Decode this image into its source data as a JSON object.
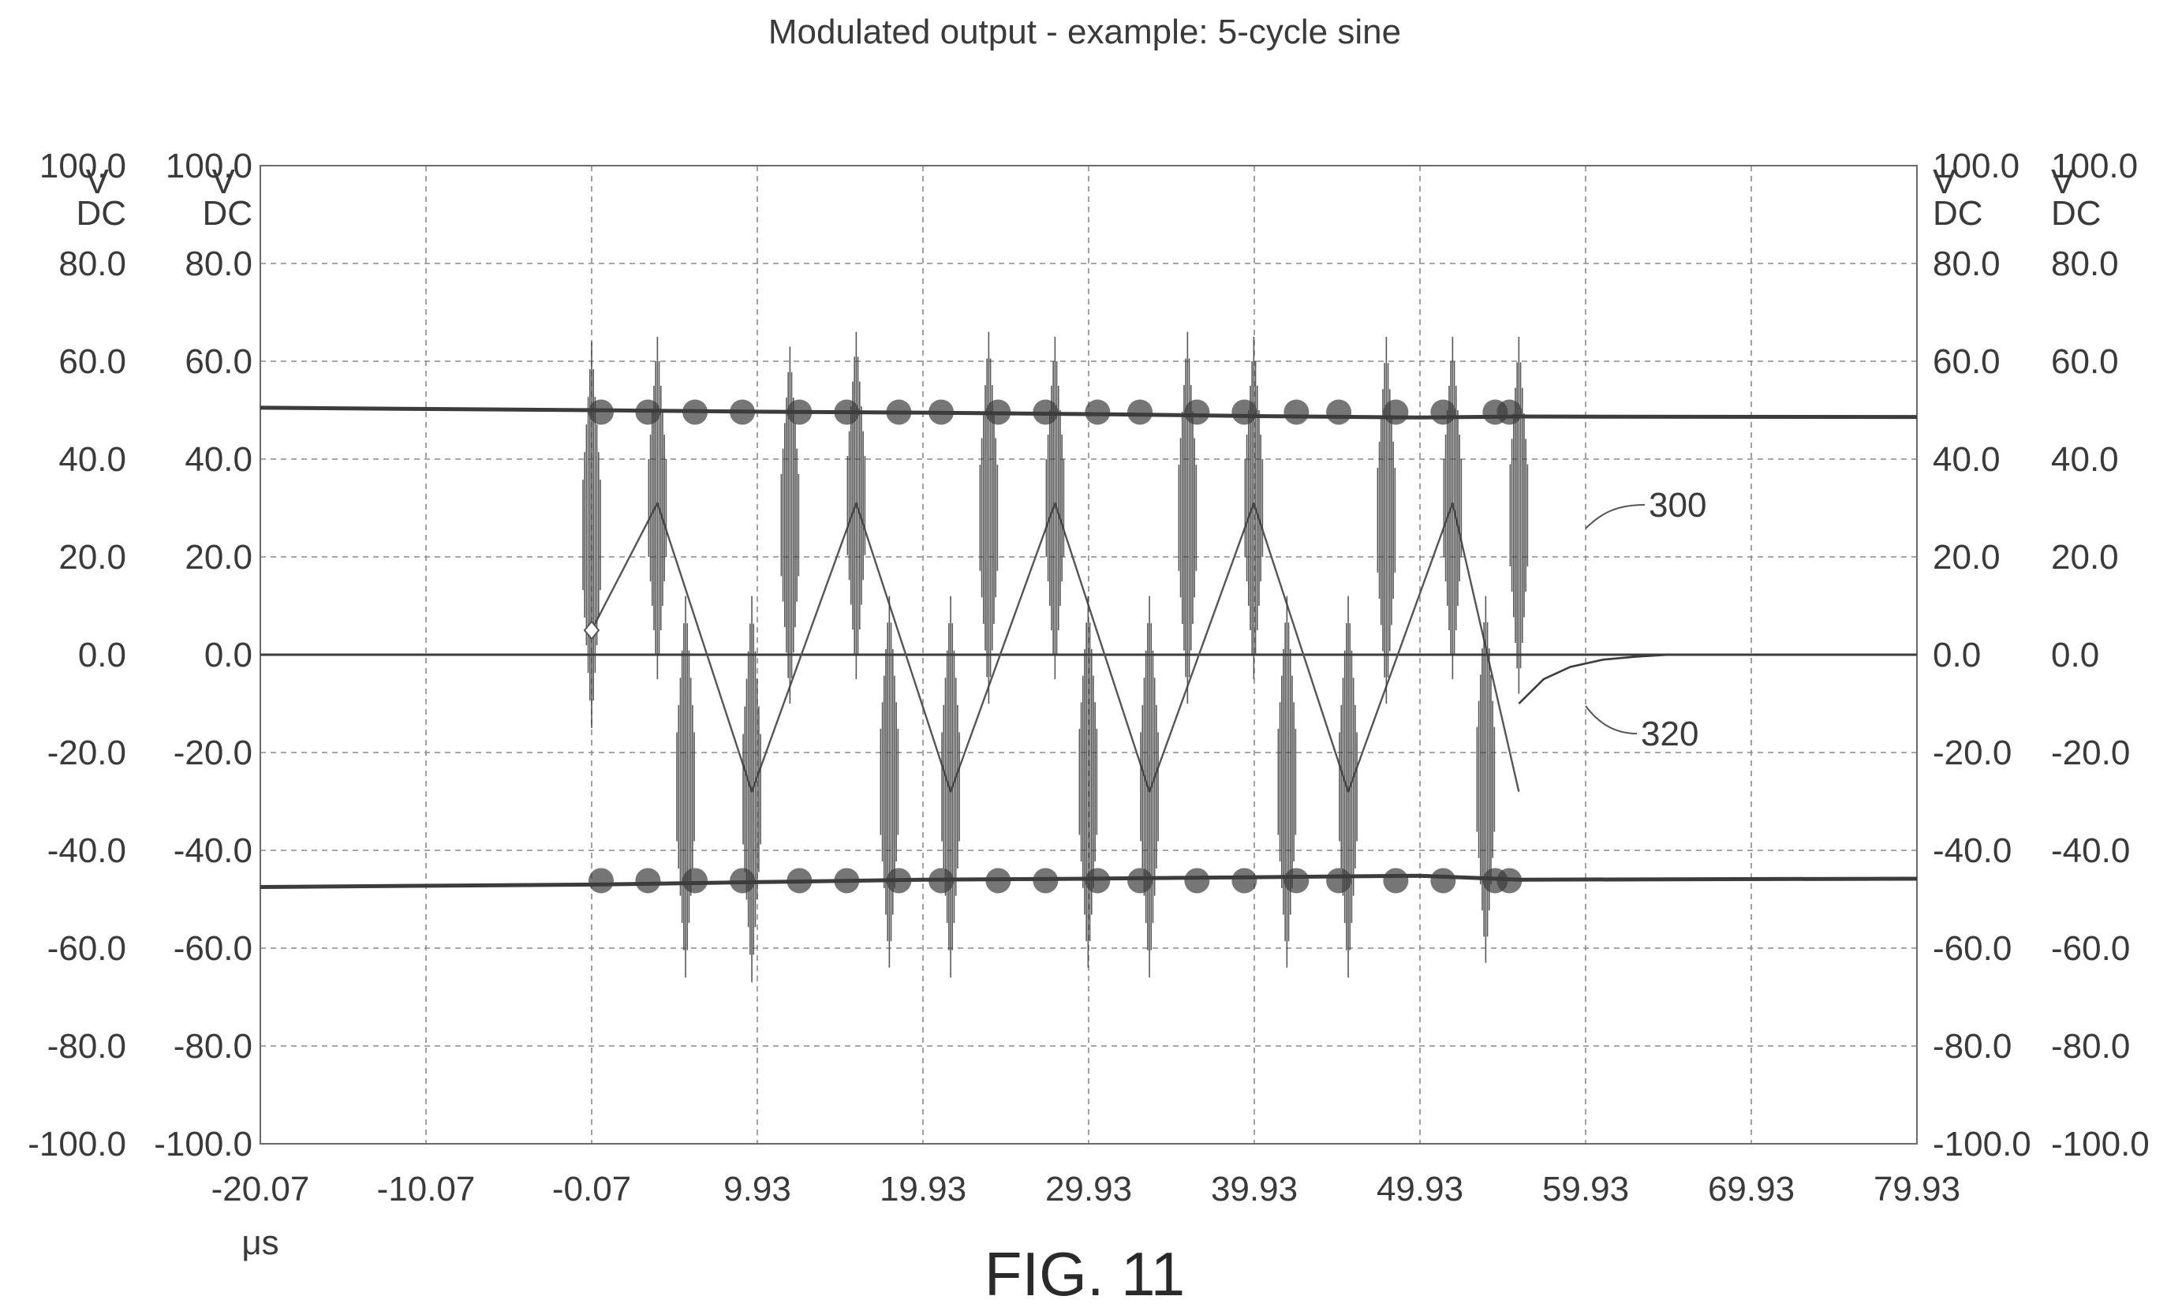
{
  "chart_data": {
    "type": "line",
    "title": "Modulated output - example: 5-cycle sine",
    "figure_label": "FIG. 11",
    "xlabel": "μs",
    "x_ticks": [
      "-20.07",
      "-10.07",
      "-0.07",
      "9.93",
      "19.93",
      "29.93",
      "39.93",
      "49.93",
      "59.93",
      "69.93",
      "79.93"
    ],
    "xlim": [
      -20.07,
      79.93
    ],
    "y_ticks": [
      "100.0",
      "80.0",
      "60.0",
      "40.0",
      "20.0",
      "0.0",
      "-20.0",
      "-40.0",
      "-60.0",
      "-80.0",
      "-100.0"
    ],
    "ylim": [
      -100,
      100
    ],
    "y_unit_lines": [
      "V",
      "DC"
    ],
    "axis_count_left": 2,
    "axis_count_right": 2,
    "grid": true,
    "annotations": [
      "300",
      "320"
    ],
    "series": [
      {
        "kind": "dc_rail",
        "color": "#3c3c3c",
        "x": [
          -20.07,
          -0.07,
          9.93,
          19.93,
          29.93,
          39.93,
          49.93,
          55.9,
          79.93
        ],
        "y": [
          50.5,
          50.0,
          49.7,
          49.5,
          49.2,
          48.8,
          48.5,
          48.7,
          48.6
        ]
      },
      {
        "kind": "dc_rail",
        "color": "#3c3c3c",
        "x": [
          -20.07,
          -0.07,
          9.93,
          19.93,
          29.93,
          39.93,
          49.93,
          55.9,
          79.93
        ],
        "y": [
          -47.5,
          -47.0,
          -46.5,
          -46.0,
          -45.8,
          -45.5,
          -45.2,
          -46.0,
          -45.8
        ]
      },
      {
        "kind": "baseline",
        "color": "#3c3c3c",
        "x": [
          -20.07,
          79.93
        ],
        "y": [
          0.0,
          0.0
        ]
      },
      {
        "name": "300",
        "kind": "sine",
        "color": "#555555",
        "x": [
          -0.07,
          3.9,
          9.6,
          15.9,
          21.6,
          27.9,
          33.6,
          39.9,
          45.6,
          51.9,
          55.9
        ],
        "y": [
          5,
          31,
          -28,
          31,
          -28,
          31,
          -28,
          31,
          -28,
          31,
          -28
        ]
      },
      {
        "name": "320",
        "kind": "switched_output",
        "color": "#3c3c3c",
        "pulses": [
          {
            "x": -0.07,
            "ymax": 64,
            "ymin": -15
          },
          {
            "x": 3.9,
            "ymax": 65,
            "ymin": -5
          },
          {
            "x": 5.6,
            "ymax": 12,
            "ymin": -66
          },
          {
            "x": 9.6,
            "ymax": 12,
            "ymin": -67
          },
          {
            "x": 11.9,
            "ymax": 63,
            "ymin": -10
          },
          {
            "x": 15.9,
            "ymax": 66,
            "ymin": -5
          },
          {
            "x": 17.9,
            "ymax": 12,
            "ymin": -64
          },
          {
            "x": 21.6,
            "ymax": 12,
            "ymin": -66
          },
          {
            "x": 23.9,
            "ymax": 66,
            "ymin": -10
          },
          {
            "x": 27.9,
            "ymax": 65,
            "ymin": -5
          },
          {
            "x": 29.9,
            "ymax": 12,
            "ymin": -64
          },
          {
            "x": 33.6,
            "ymax": 12,
            "ymin": -66
          },
          {
            "x": 35.9,
            "ymax": 66,
            "ymin": -10
          },
          {
            "x": 39.9,
            "ymax": 65,
            "ymin": -5
          },
          {
            "x": 41.9,
            "ymax": 12,
            "ymin": -64
          },
          {
            "x": 45.6,
            "ymax": 12,
            "ymin": -66
          },
          {
            "x": 47.9,
            "ymax": 65,
            "ymin": -10
          },
          {
            "x": 51.9,
            "ymax": 65,
            "ymin": -5
          },
          {
            "x": 53.9,
            "ymax": 12,
            "ymin": -63
          },
          {
            "x": 55.9,
            "ymax": 65,
            "ymin": -8
          }
        ],
        "decay_tail": {
          "x": [
            55.9,
            57.4,
            59.0,
            61.0,
            63.0,
            65.0
          ],
          "y": [
            -10,
            -5,
            -2.5,
            -1.0,
            -0.4,
            0
          ]
        }
      }
    ]
  }
}
